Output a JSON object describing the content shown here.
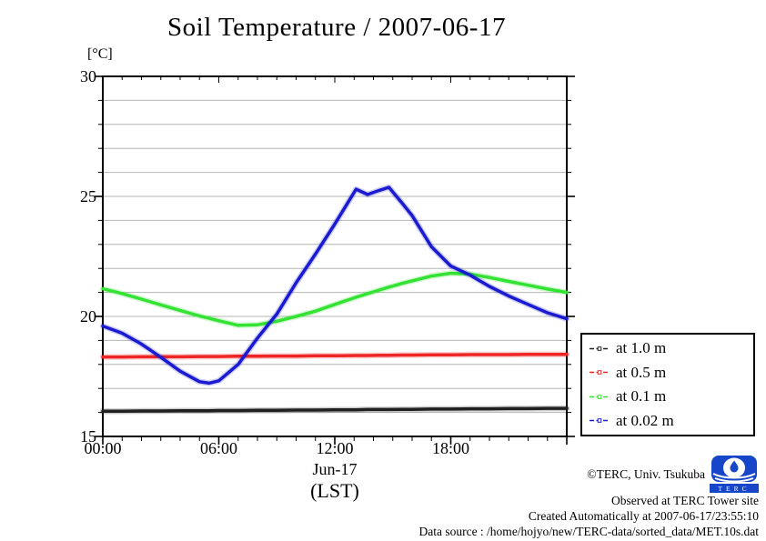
{
  "chart_data": {
    "type": "line",
    "title": "Soil Temperature / 2007-06-17",
    "ylabel": "[°C]",
    "xlabel_date": "Jun-17",
    "xlabel_unit": "(LST)",
    "x_range_hours": [
      0,
      24
    ],
    "ylim": [
      15,
      30
    ],
    "grid": "horizontal gridlines every 1 degree C, no vertical gridlines",
    "legend_position": "outside lower-right, boxed",
    "x_ticks": [
      {
        "hour": 0,
        "label": "00:00"
      },
      {
        "hour": 6,
        "label": "06:00"
      },
      {
        "hour": 12,
        "label": "12:00"
      },
      {
        "hour": 18,
        "label": "18:00"
      }
    ],
    "x_major_tick_hours": [
      0,
      6,
      12,
      18,
      24
    ],
    "y_ticks": [
      {
        "value": 15,
        "label": "15"
      },
      {
        "value": 20,
        "label": "20"
      },
      {
        "value": 25,
        "label": "25"
      },
      {
        "value": 30,
        "label": "30"
      }
    ],
    "x_hours": [
      0,
      1,
      2,
      3,
      4,
      5,
      5.5,
      6,
      7,
      8,
      9,
      10,
      11,
      12,
      13.1,
      13.7,
      14.3,
      14.8,
      15.5,
      16,
      17,
      18,
      19,
      20,
      21,
      22,
      23,
      24
    ],
    "series": [
      {
        "key": "at-1-0-m",
        "name": "at 1.0 m",
        "color": "#202020",
        "y": [
          16.05,
          16.05,
          16.06,
          16.06,
          16.07,
          16.07,
          16.07,
          16.08,
          16.08,
          16.09,
          16.09,
          16.1,
          16.1,
          16.11,
          16.11,
          16.12,
          16.12,
          16.12,
          16.13,
          16.13,
          16.14,
          16.14,
          16.15,
          16.15,
          16.16,
          16.16,
          16.17,
          16.17
        ]
      },
      {
        "key": "at-0-5-m",
        "name": "at 0.5 m",
        "color": "#ee2626",
        "y": [
          18.31,
          18.31,
          18.32,
          18.32,
          18.32,
          18.33,
          18.33,
          18.33,
          18.34,
          18.34,
          18.35,
          18.35,
          18.36,
          18.36,
          18.37,
          18.37,
          18.38,
          18.38,
          18.39,
          18.39,
          18.4,
          18.4,
          18.41,
          18.41,
          18.41,
          18.42,
          18.42,
          18.42
        ]
      },
      {
        "key": "at-0-1-m",
        "name": "at 0.1 m",
        "color": "#33e233",
        "y": [
          21.15,
          20.95,
          20.72,
          20.48,
          20.25,
          20.02,
          19.92,
          19.82,
          19.63,
          19.65,
          19.8,
          20.0,
          20.22,
          20.5,
          20.8,
          20.95,
          21.1,
          21.22,
          21.38,
          21.48,
          21.68,
          21.8,
          21.76,
          21.62,
          21.46,
          21.3,
          21.14,
          21.0
        ]
      },
      {
        "key": "at-0-02-m",
        "name": "at 0.02 m",
        "color": "#1a1ad0",
        "y": [
          19.6,
          19.3,
          18.85,
          18.3,
          17.72,
          17.28,
          17.22,
          17.32,
          18.0,
          19.1,
          20.1,
          21.4,
          22.6,
          23.85,
          25.3,
          25.08,
          25.25,
          25.38,
          24.7,
          24.2,
          22.9,
          22.1,
          21.72,
          21.25,
          20.85,
          20.5,
          20.15,
          19.9
        ]
      }
    ]
  },
  "colors": {
    "grid": "#b5b5b5",
    "axis": "#000000",
    "logo_blue": "#1846c8"
  },
  "annotations": {
    "copyright": "©TERC, Univ. Tsukuba",
    "observed": "Observed at TERC Tower site",
    "created": "Created Automatically at 2007-06-17/23:55:10",
    "data_source": "Data source : /home/hojyo/new/TERC-data/sorted_data/MET.10s.dat",
    "logo_letters": "TERC"
  }
}
